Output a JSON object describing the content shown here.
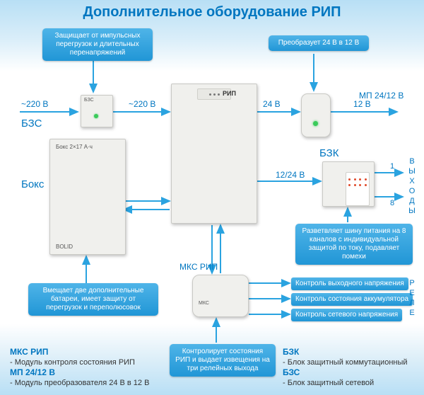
{
  "title": "Дополнительное оборудование РИП",
  "callouts": {
    "bzs_note": "Защищает от импульсных перегрузок и длительных перенапряжений",
    "mp_note": "Преобразует 24 В в 12 В",
    "boks_note": "Вмещает две дополнительные батареи, имеет защиту от перегрузок и переполюсовок",
    "bzk_note": "Разветвляет шину питания на 8 каналов с индивидуальной защитой по току, подавляет помехи",
    "mks_note": "Контролирует состояния РИП и выдает извещения на три релейных выхода"
  },
  "labels": {
    "v220_left": "~220 В",
    "v220_mid": "~220 В",
    "v24": "24 В",
    "v12": "12 В",
    "v1224": "12/24 В",
    "bzs": "БЗС",
    "boks": "Бокс",
    "bzk": "БЗК",
    "mp": "МП 24/12 В",
    "mks": "МКС РИП",
    "out1": "1",
    "out8": "8",
    "outputs": "ВЫХОДЫ",
    "relay": "РЕЛЕ",
    "relay1": "Контроль выходного напряжения",
    "relay2": "Контроль состояния аккумулятора",
    "relay3": "Контроль сетевого напряжения"
  },
  "devices": {
    "rip_label": "РИП",
    "boks_label": "Бокс 2×17 А·ч",
    "bzs_label": "БЗС",
    "brand": "BOLID"
  },
  "legend": {
    "left_items": [
      {
        "t": "МКС РИП",
        "d": "- Модуль контроля состояния РИП"
      },
      {
        "t": "МП 24/12 В",
        "d": "- Модуль преобразователя 24 В в 12 В"
      }
    ],
    "right_items": [
      {
        "t": "БЗК",
        "d": "- Блок защитный коммутационный"
      },
      {
        "t": "БЗС",
        "d": "- Блок защитный сетевой"
      }
    ]
  },
  "colors": {
    "accent": "#2aa3e0",
    "title": "#0076c0"
  }
}
